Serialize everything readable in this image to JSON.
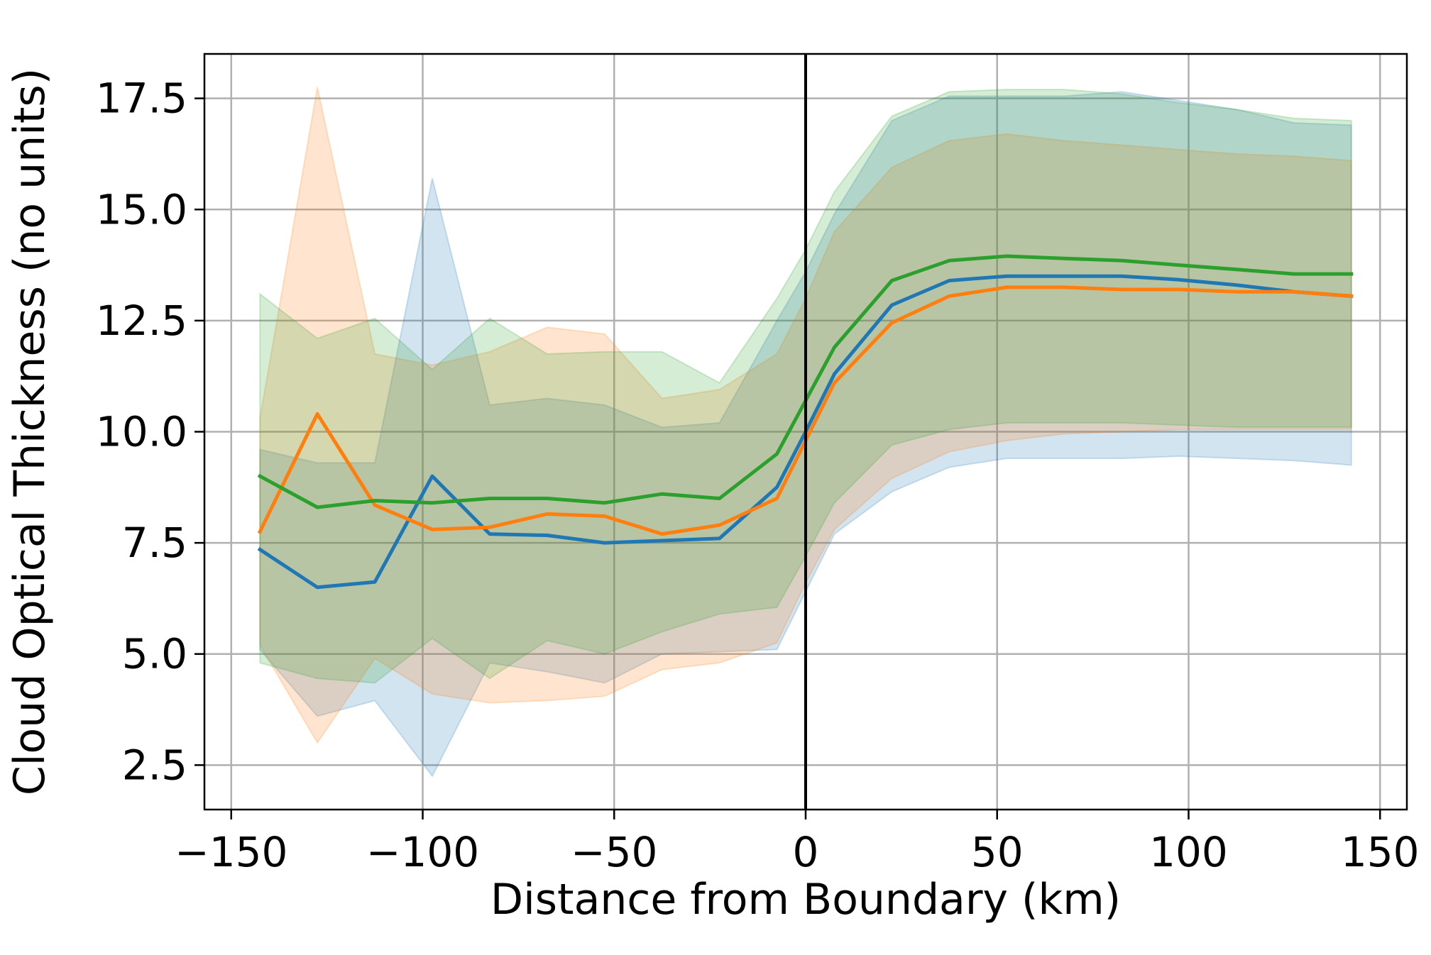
{
  "chart_data": {
    "type": "line",
    "xlabel": "Distance from Boundary (km)",
    "ylabel": "Cloud Optical Thickness (no units)",
    "xlim": [
      -157,
      157
    ],
    "ylim": [
      1.5,
      18.5
    ],
    "xticks": [
      -150,
      -100,
      -50,
      0,
      50,
      100,
      150
    ],
    "xtick_labels": [
      "−150",
      "−100",
      "−50",
      "0",
      "50",
      "100",
      "150"
    ],
    "yticks": [
      2.5,
      5.0,
      7.5,
      10.0,
      12.5,
      15.0,
      17.5
    ],
    "ytick_labels": [
      "2.5",
      "5.0",
      "7.5",
      "10.0",
      "12.5",
      "15.0",
      "17.5"
    ],
    "grid": true,
    "vline_x": 0,
    "x": [
      -142.5,
      -127.5,
      -112.5,
      -97.5,
      -82.5,
      -67.5,
      -52.5,
      -37.5,
      -22.5,
      -7.5,
      0,
      7.5,
      22.5,
      37.5,
      52.5,
      67.5,
      82.5,
      97.5,
      112.5,
      127.5,
      142.5
    ],
    "series": [
      {
        "color": "#1f77b4",
        "values": [
          7.35,
          6.5,
          6.62,
          9.0,
          7.7,
          7.67,
          7.5,
          7.55,
          7.6,
          8.75,
          10.0,
          11.3,
          12.85,
          13.4,
          13.5,
          13.5,
          13.5,
          13.42,
          13.3,
          13.15,
          13.05
        ],
        "upper": [
          9.6,
          9.3,
          9.3,
          15.7,
          10.6,
          10.75,
          10.6,
          10.1,
          10.2,
          12.5,
          13.6,
          14.9,
          17.0,
          17.55,
          17.55,
          17.55,
          17.65,
          17.45,
          17.25,
          16.95,
          16.9
        ],
        "lower": [
          5.1,
          3.6,
          3.95,
          2.25,
          4.8,
          4.6,
          4.35,
          5.0,
          5.05,
          5.1,
          6.4,
          7.7,
          8.65,
          9.2,
          9.4,
          9.4,
          9.4,
          9.45,
          9.4,
          9.35,
          9.25
        ]
      },
      {
        "color": "#ff7f0e",
        "values": [
          7.75,
          10.4,
          8.35,
          7.8,
          7.85,
          8.15,
          8.1,
          7.7,
          7.9,
          8.5,
          9.8,
          11.1,
          12.45,
          13.05,
          13.25,
          13.25,
          13.2,
          13.2,
          13.15,
          13.15,
          13.05
        ],
        "upper": [
          10.3,
          17.75,
          11.75,
          11.5,
          11.8,
          12.35,
          12.2,
          10.75,
          10.95,
          11.75,
          13.0,
          14.5,
          15.95,
          16.55,
          16.7,
          16.55,
          16.45,
          16.35,
          16.25,
          16.2,
          16.1
        ],
        "lower": [
          5.2,
          3.0,
          4.9,
          4.1,
          3.9,
          3.95,
          4.05,
          4.65,
          4.8,
          5.25,
          6.6,
          7.8,
          8.95,
          9.55,
          9.8,
          9.95,
          10.0,
          10.05,
          10.05,
          10.05,
          10.05
        ]
      },
      {
        "color": "#2ca02c",
        "values": [
          9.0,
          8.3,
          8.45,
          8.4,
          8.5,
          8.5,
          8.4,
          8.6,
          8.5,
          9.5,
          10.7,
          11.9,
          13.4,
          13.85,
          13.95,
          13.9,
          13.85,
          13.75,
          13.65,
          13.55,
          13.55
        ],
        "upper": [
          13.1,
          12.1,
          12.55,
          11.4,
          12.55,
          11.75,
          11.8,
          11.8,
          11.1,
          13.0,
          14.1,
          15.4,
          17.1,
          17.65,
          17.7,
          17.7,
          17.6,
          17.4,
          17.25,
          17.05,
          17.0
        ],
        "lower": [
          4.8,
          4.45,
          4.35,
          5.35,
          4.45,
          5.3,
          5.0,
          5.5,
          5.9,
          6.05,
          7.2,
          8.4,
          9.7,
          10.05,
          10.2,
          10.2,
          10.2,
          10.15,
          10.1,
          10.1,
          10.1
        ]
      }
    ]
  }
}
